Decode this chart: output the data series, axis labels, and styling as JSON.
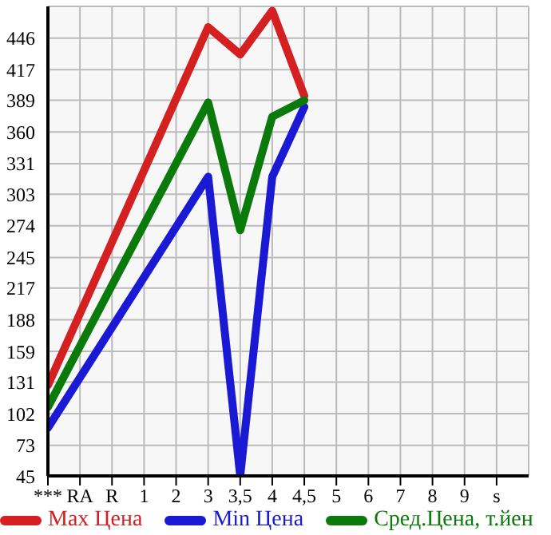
{
  "chart_data": {
    "type": "line",
    "categories": [
      "***",
      "RA",
      "R",
      "1",
      "2",
      "3",
      "3,5",
      "4",
      "4,5",
      "5",
      "6",
      "7",
      "8",
      "9",
      "s"
    ],
    "series": [
      {
        "name": "Max Цена",
        "color": "#d42020",
        "values": [
          128,
          null,
          null,
          null,
          null,
          456,
          431,
          471,
          393,
          null,
          null,
          null,
          null,
          null,
          null
        ]
      },
      {
        "name": "Min Цена",
        "color": "#1a1ad4",
        "values": [
          89,
          null,
          null,
          null,
          null,
          319,
          45,
          319,
          383,
          null,
          null,
          null,
          null,
          null,
          null
        ]
      },
      {
        "name": "Сред.Цена, т.йен",
        "color": "#0a7a0a",
        "values": [
          108,
          null,
          null,
          null,
          null,
          387,
          270,
          374,
          389,
          null,
          null,
          null,
          null,
          null,
          null
        ]
      }
    ],
    "ylim": [
      45,
      475
    ],
    "yticks": [
      45,
      73,
      102,
      131,
      159,
      188,
      217,
      245,
      274,
      303,
      331,
      360,
      389,
      417,
      446
    ],
    "grid": true,
    "legend": "bottom",
    "marker": "none",
    "line_style": "solid"
  }
}
